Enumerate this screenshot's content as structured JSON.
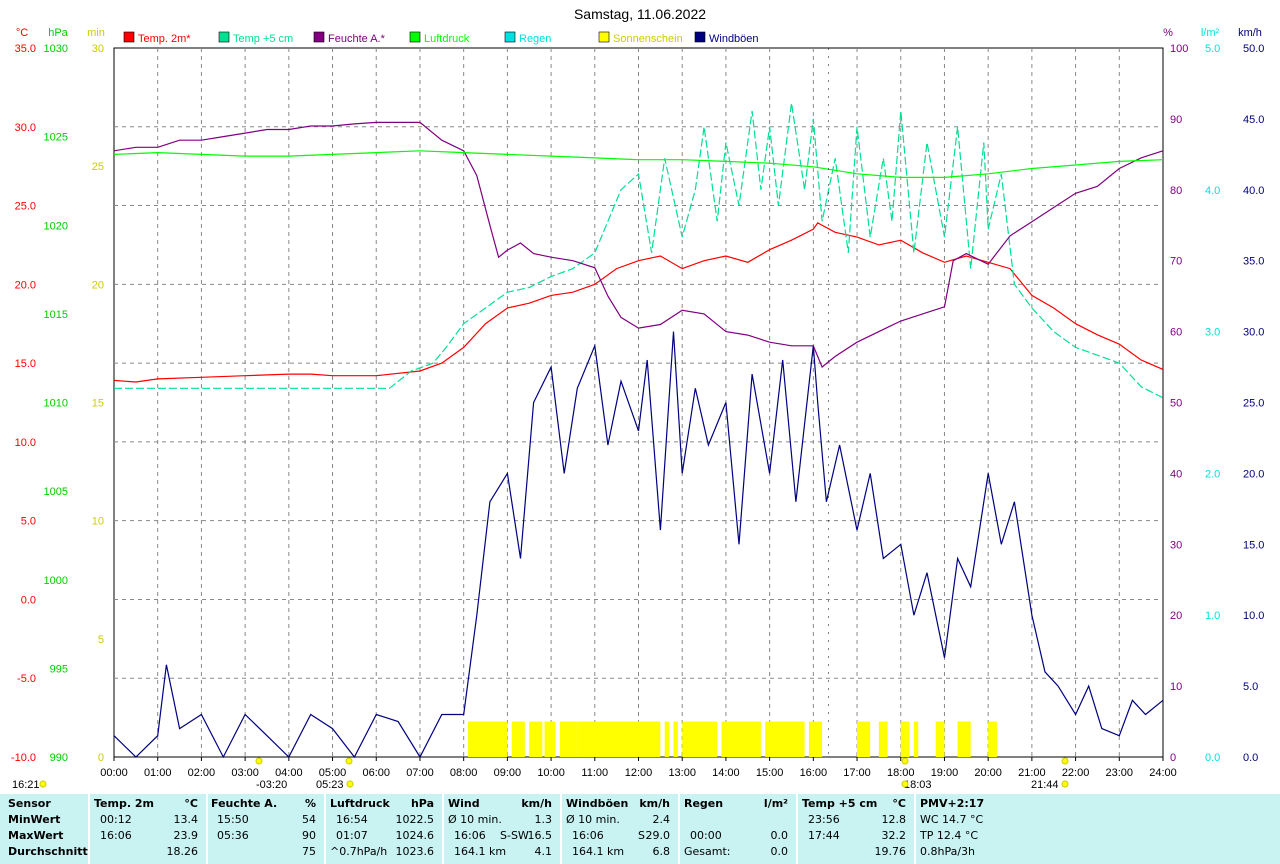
{
  "chart_data": {
    "type": "line",
    "title": "Samstag, 11.06.2022",
    "xlim": [
      0,
      24
    ],
    "x_tick_labels": [
      "00:00",
      "01:00",
      "02:00",
      "03:00",
      "04:00",
      "05:00",
      "06:00",
      "07:00",
      "08:00",
      "09:00",
      "10:00",
      "11:00",
      "12:00",
      "13:00",
      "14:00",
      "15:00",
      "16:00",
      "17:00",
      "18:00",
      "19:00",
      "20:00",
      "21:00",
      "22:00",
      "23:00",
      "24:00"
    ],
    "grid": true,
    "background": "#ffffff",
    "axes": [
      {
        "id": "temp",
        "unit": "°C",
        "side": "left",
        "color": "#ff0000",
        "range": [
          -10,
          35
        ],
        "ticks": [
          "35.0",
          "30.0",
          "25.0",
          "20.0",
          "15.0",
          "10.0",
          "5.0",
          "0.0",
          "-5.0",
          "-10.0"
        ]
      },
      {
        "id": "press",
        "unit": "hPa",
        "side": "left",
        "color": "#00cc00",
        "range": [
          990,
          1030
        ],
        "ticks": [
          "1030",
          "1025",
          "1020",
          "1015",
          "1010",
          "1005",
          "1000",
          "995",
          "990"
        ]
      },
      {
        "id": "sun",
        "unit": "min",
        "side": "left",
        "color": "#ffff00",
        "range": [
          0,
          30
        ],
        "ticks": [
          "30",
          "25",
          "20",
          "15",
          "10",
          "5",
          "0"
        ]
      },
      {
        "id": "hum",
        "unit": "%",
        "side": "right",
        "color": "#800080",
        "range": [
          0,
          100
        ],
        "ticks": [
          "100",
          "90",
          "80",
          "70",
          "60",
          "50",
          "40",
          "30",
          "20",
          "10",
          "0"
        ]
      },
      {
        "id": "rain",
        "unit": "l/m²",
        "side": "right",
        "color": "#00e0e0",
        "range": [
          0,
          5
        ],
        "ticks": [
          "5.0",
          "4.0",
          "3.0",
          "2.0",
          "1.0",
          "0.0"
        ]
      },
      {
        "id": "wind",
        "unit": "km/h",
        "side": "right",
        "color": "#000080",
        "range": [
          0,
          50
        ],
        "ticks": [
          "50.0",
          "45.0",
          "40.0",
          "35.0",
          "30.0",
          "25.0",
          "20.0",
          "15.0",
          "10.0",
          "5.0",
          "0.0"
        ]
      }
    ],
    "legend": {
      "placement": "top",
      "items": [
        {
          "name": "Temp. 2m*",
          "color": "#ff0000"
        },
        {
          "name": "Temp +5 cm",
          "color": "#00e090"
        },
        {
          "name": "Feuchte A.*",
          "color": "#800080"
        },
        {
          "name": "Luftdruck",
          "color": "#00ff00"
        },
        {
          "name": "Regen",
          "color": "#00e0e0"
        },
        {
          "name": "Sonnenschein",
          "color": "#ffff00"
        },
        {
          "name": "Windböen",
          "color": "#000080"
        }
      ]
    },
    "series": [
      {
        "name": "Temp. 2m*",
        "axis": "temp",
        "color": "#ff0000",
        "x": [
          0,
          0.5,
          1,
          2,
          3,
          4,
          4.5,
          5,
          6,
          7,
          7.5,
          8,
          8.5,
          9,
          9.5,
          10,
          10.5,
          11,
          11.5,
          12,
          12.5,
          13,
          13.5,
          14,
          14.5,
          15,
          15.5,
          16,
          16.1,
          16.5,
          17,
          17.5,
          18,
          18.5,
          19,
          19.5,
          20,
          20.5,
          21,
          21.5,
          22,
          22.5,
          23,
          23.5,
          24
        ],
        "y": [
          13.9,
          13.8,
          14.0,
          14.1,
          14.2,
          14.3,
          14.3,
          14.2,
          14.2,
          14.5,
          15.0,
          16.0,
          17.5,
          18.5,
          18.8,
          19.3,
          19.5,
          20.0,
          21.0,
          21.5,
          21.8,
          21.0,
          21.5,
          21.8,
          21.4,
          22.2,
          22.8,
          23.5,
          23.9,
          23.3,
          23.0,
          22.5,
          22.8,
          22.0,
          21.4,
          21.8,
          21.4,
          21.0,
          19.3,
          18.5,
          17.5,
          16.8,
          16.2,
          15.2,
          14.6
        ]
      },
      {
        "name": "Temp +5 cm",
        "axis": "temp",
        "color": "#00e090",
        "x": [
          0,
          1,
          2,
          3,
          4,
          5,
          6,
          6.3,
          6.8,
          7.3,
          7.6,
          8,
          8.5,
          9,
          9.5,
          10,
          10.5,
          11,
          11.3,
          11.6,
          12,
          12.3,
          12.6,
          13,
          13.3,
          13.5,
          13.8,
          14,
          14.3,
          14.6,
          14.8,
          15,
          15.2,
          15.5,
          15.8,
          16,
          16.2,
          16.5,
          16.8,
          17,
          17.3,
          17.6,
          17.8,
          18,
          18.3,
          18.6,
          19,
          19.3,
          19.6,
          19.9,
          20,
          20.3,
          20.6,
          21,
          21.5,
          22,
          22.5,
          23,
          23.5,
          24
        ],
        "y": [
          13.4,
          13.4,
          13.4,
          13.4,
          13.4,
          13.4,
          13.4,
          13.4,
          14.5,
          15.0,
          16.0,
          17.5,
          18.5,
          19.5,
          19.8,
          20.5,
          21.0,
          22.0,
          24.0,
          26.0,
          27.0,
          22.0,
          28.0,
          23.0,
          26.0,
          30.0,
          24.0,
          29.0,
          25.0,
          31.0,
          26.0,
          30.0,
          25.0,
          31.5,
          26.0,
          30.5,
          24.0,
          28.0,
          22.0,
          30.0,
          23.0,
          28.0,
          24.0,
          31.0,
          22.0,
          29.0,
          23.0,
          30.0,
          21.0,
          29.0,
          23.5,
          27.0,
          20.0,
          18.5,
          17.0,
          16.0,
          15.5,
          15.0,
          13.5,
          12.8
        ]
      },
      {
        "name": "Feuchte A.*",
        "axis": "hum",
        "color": "#800080",
        "x": [
          0,
          0.5,
          1,
          1.5,
          2,
          2.5,
          3,
          3.5,
          4,
          4.5,
          5,
          5.5,
          6,
          6.5,
          7,
          7.5,
          8,
          8.3,
          8.6,
          8.8,
          9,
          9.3,
          9.6,
          10,
          10.5,
          11,
          11.3,
          11.6,
          12,
          12.5,
          13,
          13.5,
          14,
          14.5,
          15,
          15.5,
          16,
          16.2,
          16.5,
          17,
          17.5,
          18,
          18.5,
          19,
          19.2,
          19.5,
          20,
          20.5,
          21,
          21.5,
          22,
          22.5,
          23,
          23.5,
          24
        ],
        "y": [
          85.5,
          86.0,
          86.0,
          87.0,
          87.0,
          87.5,
          88.0,
          88.5,
          88.5,
          89.0,
          89.0,
          89.3,
          89.5,
          89.5,
          89.5,
          87.0,
          85.5,
          82.0,
          75.0,
          70.5,
          71.5,
          72.5,
          71.0,
          70.5,
          70.0,
          69.0,
          65.0,
          62.0,
          60.5,
          61.0,
          63.0,
          62.5,
          60.0,
          59.5,
          58.5,
          58.0,
          58.0,
          55.0,
          56.5,
          58.5,
          60.0,
          61.5,
          62.5,
          63.5,
          70.0,
          71.0,
          69.5,
          73.5,
          75.5,
          77.5,
          79.5,
          80.5,
          83.0,
          84.5,
          85.5
        ]
      },
      {
        "name": "Luftdruck",
        "axis": "press",
        "color": "#00ff00",
        "x": [
          0,
          1,
          2,
          3,
          4,
          5,
          6,
          7,
          8,
          9,
          10,
          11,
          12,
          13,
          14,
          15,
          16,
          17,
          18,
          19,
          20,
          21,
          22,
          23,
          24
        ],
        "y": [
          1024.0,
          1024.1,
          1024.0,
          1023.9,
          1023.9,
          1024.0,
          1024.1,
          1024.2,
          1024.1,
          1024.0,
          1023.9,
          1023.8,
          1023.7,
          1023.7,
          1023.6,
          1023.5,
          1023.3,
          1022.9,
          1022.7,
          1022.7,
          1022.9,
          1023.2,
          1023.4,
          1023.6,
          1023.7
        ]
      },
      {
        "name": "Windböen",
        "axis": "wind",
        "color": "#000080",
        "x": [
          0,
          0.5,
          1,
          1.2,
          1.5,
          2,
          2.5,
          3,
          3.5,
          4,
          4.5,
          5,
          5.5,
          6,
          6.5,
          7,
          7.5,
          8,
          8.3,
          8.6,
          9,
          9.3,
          9.6,
          10,
          10.3,
          10.6,
          11,
          11.3,
          11.6,
          12,
          12.2,
          12.5,
          12.8,
          13,
          13.3,
          13.6,
          14,
          14.3,
          14.6,
          15,
          15.3,
          15.6,
          16,
          16.1,
          16.3,
          16.6,
          17,
          17.3,
          17.6,
          18,
          18.3,
          18.6,
          19,
          19.3,
          19.6,
          20,
          20.3,
          20.6,
          21,
          21.3,
          21.6,
          22,
          22.3,
          22.6,
          23,
          23.3,
          23.6,
          24
        ],
        "y": [
          1.5,
          0,
          1.5,
          6.5,
          2.0,
          3.0,
          0,
          3.0,
          1.5,
          0,
          3.0,
          2.0,
          0,
          3.0,
          2.5,
          0,
          3.0,
          3.0,
          10.0,
          18.0,
          20.0,
          14.0,
          25.0,
          27.5,
          20.0,
          26.0,
          29.0,
          22.0,
          26.5,
          23.0,
          28.0,
          16.0,
          30.0,
          20.0,
          26.0,
          22.0,
          25.0,
          15.0,
          27.0,
          20.0,
          28.0,
          18.0,
          29.0,
          25.0,
          18.0,
          22.0,
          16.0,
          20.0,
          14.0,
          15.0,
          10.0,
          13.0,
          7.0,
          14.0,
          12.0,
          20.0,
          15.0,
          18.0,
          10.0,
          6.0,
          5.0,
          3.0,
          5.0,
          2.0,
          1.5,
          4.0,
          3.0,
          4.0
        ]
      }
    ],
    "sunshine": {
      "axis": "sun",
      "color": "#ffff00",
      "height_min": [
        30,
        1.5
      ],
      "segments": [
        [
          8.1,
          9.0
        ],
        [
          9.1,
          9.4
        ],
        [
          9.5,
          9.8
        ],
        [
          9.85,
          10.1
        ],
        [
          10.2,
          10.6
        ],
        [
          10.6,
          12.5
        ],
        [
          12.6,
          12.7
        ],
        [
          12.8,
          12.9
        ],
        [
          13.0,
          13.8
        ],
        [
          13.9,
          14.8
        ],
        [
          14.9,
          15.8
        ],
        [
          15.9,
          16.2
        ],
        [
          17.0,
          17.3
        ],
        [
          17.5,
          17.7
        ],
        [
          18.0,
          18.2
        ],
        [
          18.3,
          18.4
        ],
        [
          18.8,
          19.0
        ],
        [
          19.3,
          19.6
        ],
        [
          20.0,
          20.2
        ]
      ]
    },
    "annotations": {
      "sunrise": "-03:20",
      "sunrise2": "05:23",
      "sunset": "18:03",
      "sunset2": "21:44",
      "now": "16:21"
    }
  },
  "stats": {
    "sensor_header": "Sensor",
    "row_labels": [
      "MinWert",
      "MaxWert",
      "Durchschnitt"
    ],
    "temp": {
      "title": "Temp. 2m",
      "unit": "°C",
      "rows": [
        [
          "00:12",
          "13.4"
        ],
        [
          "16:06",
          "23.9"
        ],
        [
          "",
          "18.26"
        ]
      ]
    },
    "hum": {
      "title": "Feuchte A.",
      "unit": "%",
      "rows": [
        [
          "15:50",
          "54"
        ],
        [
          "05:36",
          "90"
        ],
        [
          "",
          "75"
        ]
      ]
    },
    "press": {
      "title": "Luftdruck",
      "unit": "hPa",
      "rows": [
        [
          "16:54",
          "1022.5"
        ],
        [
          "01:07",
          "1024.6"
        ],
        [
          "^0.7hPa/h",
          "1023.6"
        ]
      ]
    },
    "wind": {
      "title": "Wind",
      "unit": "km/h",
      "rows": [
        [
          "Ø 10 min.",
          "",
          "1.3"
        ],
        [
          "16:06",
          "S-SW",
          "16.5"
        ],
        [
          "164.1 km",
          "",
          "4.1"
        ]
      ]
    },
    "gust": {
      "title": "Windböen",
      "unit": "km/h",
      "rows": [
        [
          "Ø 10 min.",
          "",
          "2.4"
        ],
        [
          "16:06",
          "S",
          "29.0"
        ],
        [
          "164.1 km",
          "",
          "6.8"
        ]
      ]
    },
    "rain": {
      "title": "Regen",
      "unit": "l/m²",
      "rows": [
        [
          "",
          ""
        ],
        [
          "00:00",
          "0.0"
        ],
        [
          "Gesamt:",
          "0.0"
        ]
      ]
    },
    "t5": {
      "title": "Temp +5 cm",
      "unit": "°C",
      "rows": [
        [
          "23:56",
          "12.8"
        ],
        [
          "17:44",
          "32.2"
        ],
        [
          "",
          "19.76"
        ]
      ]
    },
    "pmv": {
      "title": "PMV+2:17",
      "rows": [
        "WC 14.7 °C",
        "TP 12.4 °C",
        "0.8hPa/3h"
      ]
    }
  }
}
